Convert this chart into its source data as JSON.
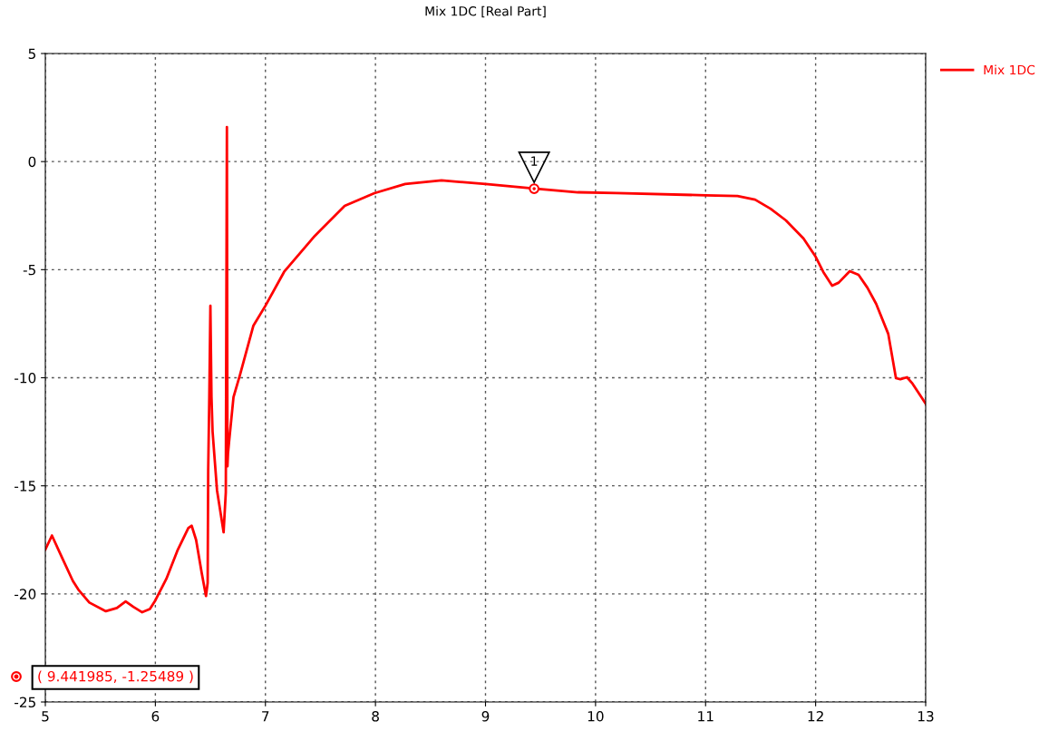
{
  "chart_data": {
    "type": "line",
    "title": "Mix 1DC [Real Part]",
    "x": [
      5.0,
      5.06,
      5.15,
      5.25,
      5.3,
      5.4,
      5.55,
      5.65,
      5.73,
      5.8,
      5.88,
      5.95,
      6.0,
      6.1,
      6.2,
      6.3,
      6.33,
      6.37,
      6.42,
      6.46,
      6.475,
      6.48,
      6.49,
      6.5,
      6.51,
      6.52,
      6.56,
      6.62,
      6.64,
      6.65,
      6.655,
      6.66,
      6.67,
      6.71,
      6.77,
      6.89,
      7.0,
      7.17,
      7.45,
      7.72,
      7.99,
      8.27,
      8.6,
      9.0,
      9.441985,
      9.84,
      10.19,
      11.0,
      11.29,
      11.45,
      11.59,
      11.73,
      11.89,
      12.0,
      12.07,
      12.15,
      12.21,
      12.31,
      12.39,
      12.47,
      12.55,
      12.66,
      12.73,
      12.77,
      12.83,
      12.88,
      13.0
    ],
    "series": [
      {
        "name": "Mix 1DC",
        "color": "#ff0000",
        "values": [
          -17.95,
          -17.3,
          -18.3,
          -19.4,
          -19.8,
          -20.4,
          -20.8,
          -20.65,
          -20.35,
          -20.6,
          -20.85,
          -20.7,
          -20.3,
          -19.3,
          -18.0,
          -16.95,
          -16.85,
          -17.5,
          -19.0,
          -20.1,
          -19.5,
          -14.3,
          -10.9,
          -6.67,
          -10.9,
          -12.5,
          -15.2,
          -17.15,
          -15.3,
          1.6,
          -14.1,
          -13.5,
          -12.95,
          -10.9,
          -9.85,
          -7.6,
          -6.67,
          -5.1,
          -3.43,
          -2.05,
          -1.46,
          -1.04,
          -0.87,
          -1.04,
          -1.25,
          -1.42,
          -1.46,
          -1.56,
          -1.59,
          -1.76,
          -2.18,
          -2.72,
          -3.56,
          -4.4,
          -5.11,
          -5.74,
          -5.6,
          -5.07,
          -5.24,
          -5.83,
          -6.58,
          -7.97,
          -10.02,
          -10.07,
          -9.98,
          -10.27,
          -11.2
        ]
      }
    ],
    "xlim": [
      5,
      13
    ],
    "ylim": [
      -25,
      5
    ],
    "xticks": [
      5,
      6,
      7,
      8,
      9,
      10,
      11,
      12,
      13
    ],
    "yticks": [
      -25,
      -20,
      -15,
      -10,
      -5,
      0,
      5
    ],
    "grid": true,
    "legend": "top right",
    "marker": "none",
    "line_style": "solid",
    "annotations": [
      {
        "text": "1",
        "x": 9.441985,
        "y": -1.25489
      },
      "( 9.441985, -1.25489 )"
    ]
  }
}
